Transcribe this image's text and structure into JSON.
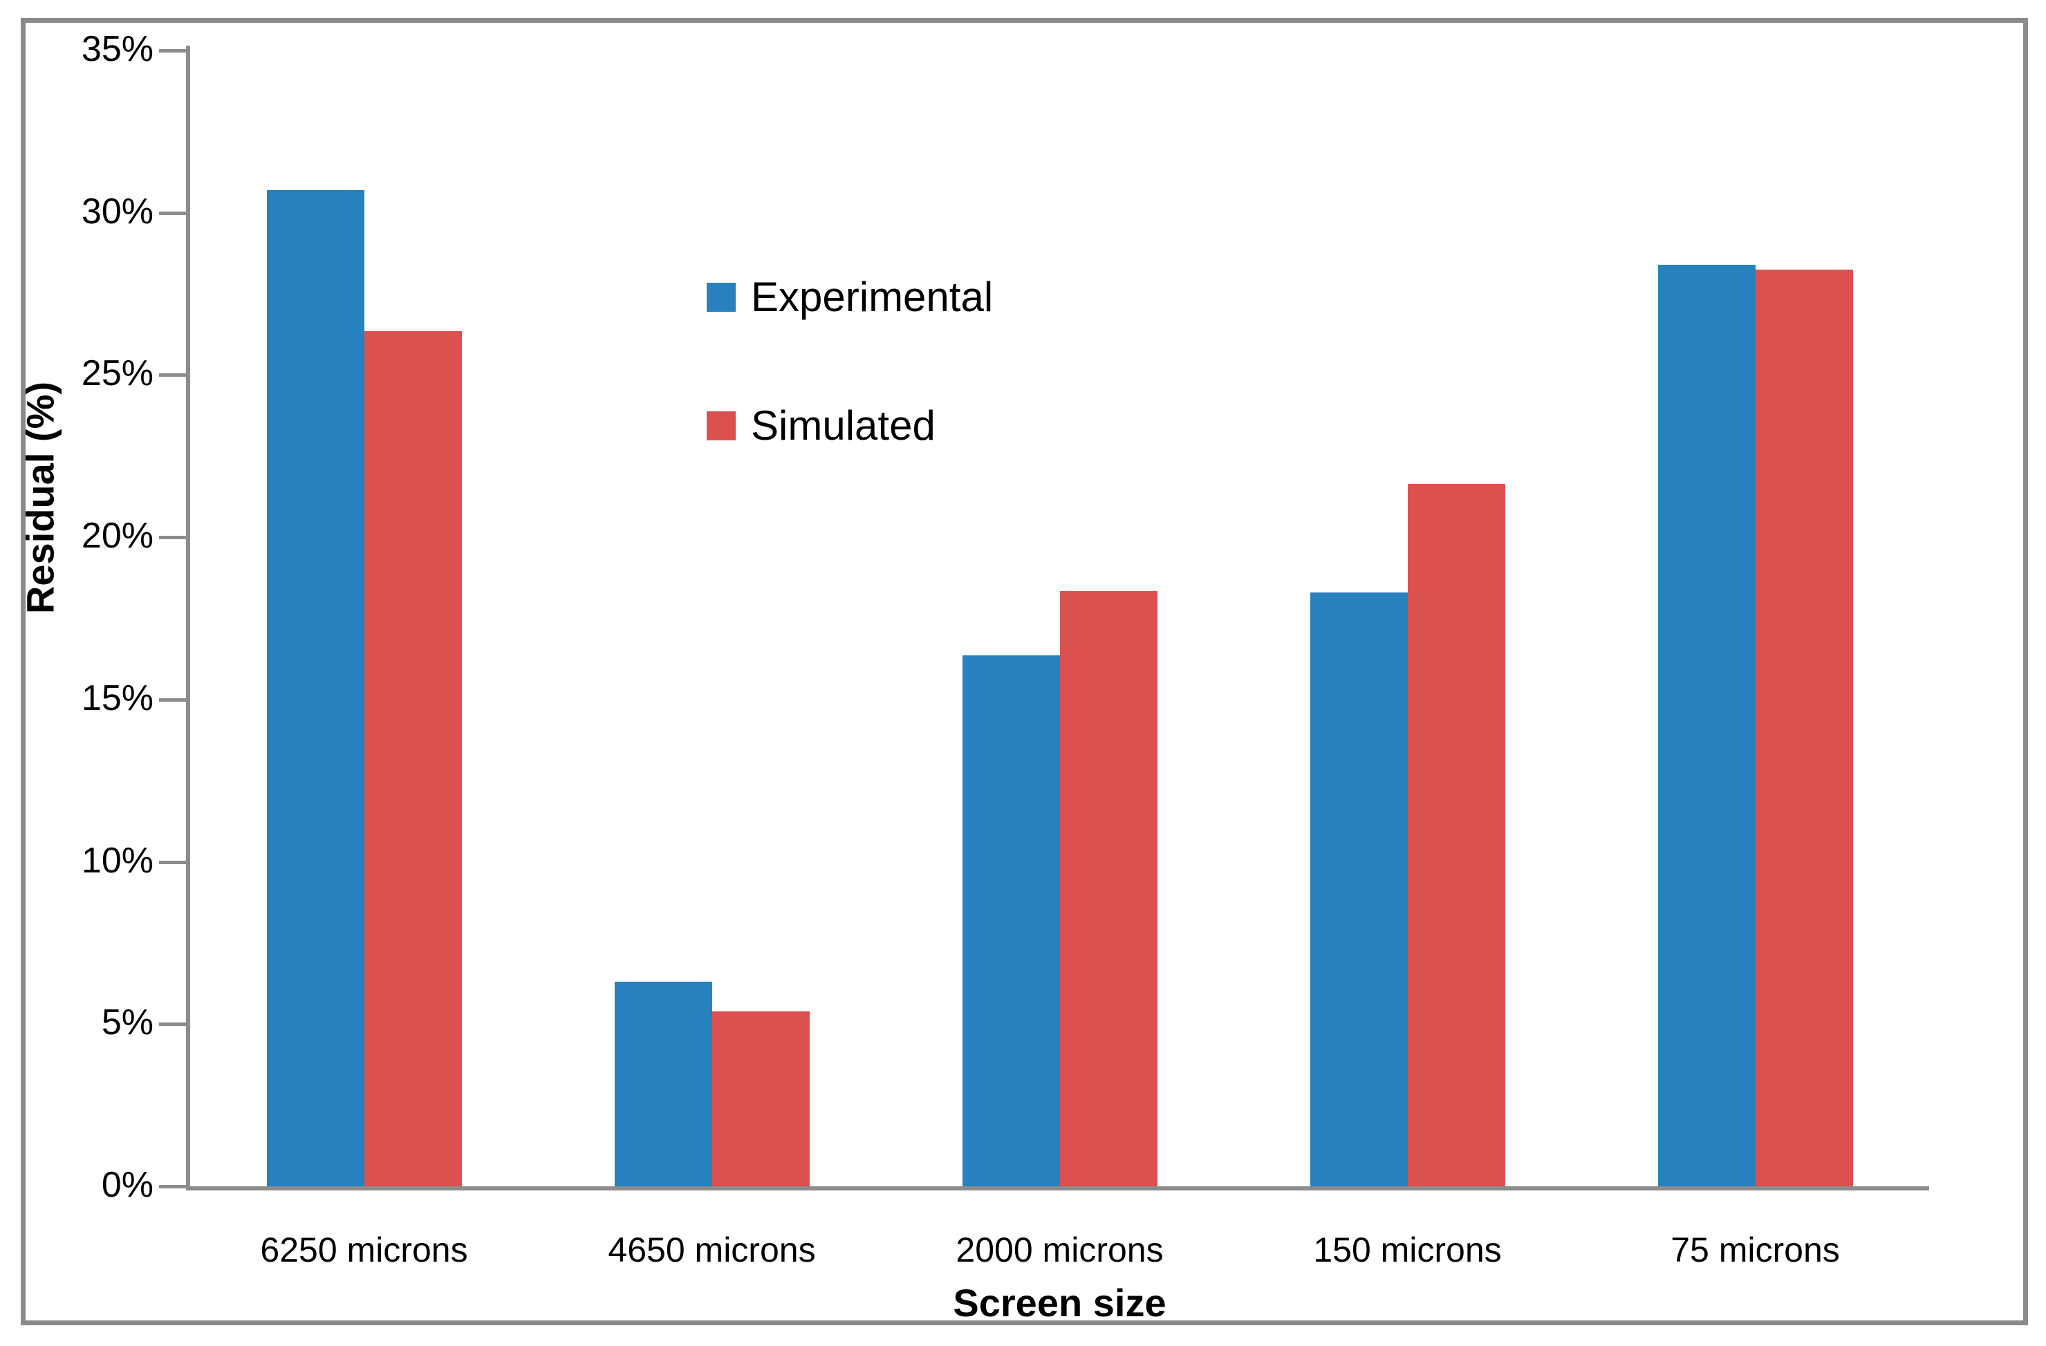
{
  "chart_data": {
    "type": "bar",
    "title": "",
    "xlabel": "Screen size",
    "ylabel": "Residual (%)",
    "categories": [
      "6250 microns",
      "4650 microns",
      "2000 microns",
      "150 microns",
      "75 microns"
    ],
    "series": [
      {
        "name": "Experimental",
        "color": "#2681be",
        "values": [
          30.7,
          6.3,
          16.35,
          18.3,
          28.4
        ]
      },
      {
        "name": "Simulated",
        "color": "#db5150",
        "values": [
          26.35,
          5.4,
          18.35,
          21.65,
          28.25
        ]
      }
    ],
    "values_unit": "percent",
    "ylim": [
      0,
      35
    ],
    "ytick_step": 5,
    "ytick_labels": [
      "0%",
      "5%",
      "10%",
      "15%",
      "20%",
      "25%",
      "30%",
      "35%"
    ],
    "grid": false,
    "legend_position": "inside upper-left-of-center, vertical",
    "legend_entries": [
      "Experimental",
      "Simulated"
    ],
    "axis_color": "#8c8c8c",
    "frame_border_color": "#8a8a8a",
    "text_color": "#000000",
    "plot_background": "#ffffff"
  }
}
